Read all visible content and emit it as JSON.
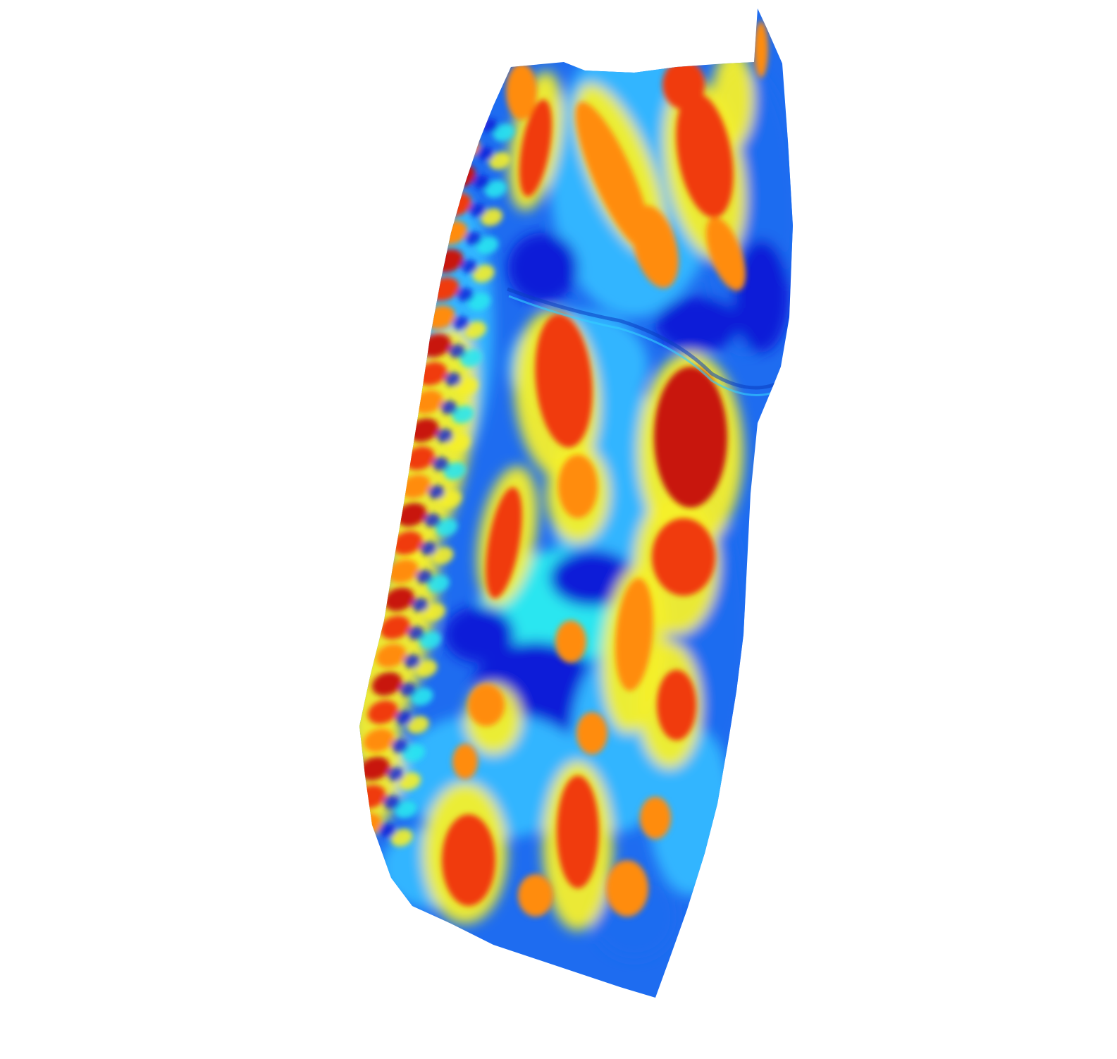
{
  "scene": {
    "background": "#ffffff",
    "subject": "3d-colored-surface",
    "colormap": [
      "#00007f",
      "#0050ff",
      "#00c0ff",
      "#40ffc0",
      "#ffff00",
      "#ff9000",
      "#ff2000",
      "#9f0000"
    ],
    "palette": {
      "dark_blue": "#0a1ed8",
      "blue": "#1e6cf0",
      "light_blue": "#33b5ff",
      "cyan": "#2ae6f0",
      "yellow": "#f5f02a",
      "orange": "#ff8c10",
      "red": "#f03a0a",
      "dark_red": "#c8140a"
    }
  }
}
